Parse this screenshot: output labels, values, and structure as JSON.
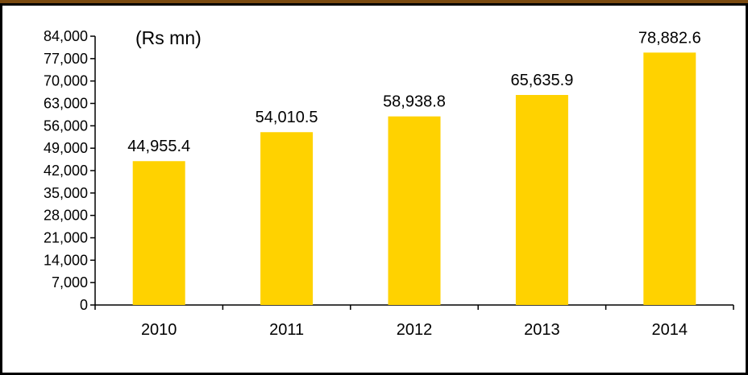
{
  "chart_data": {
    "type": "bar",
    "unit_label": "(Rs mn)",
    "categories": [
      "2010",
      "2011",
      "2012",
      "2013",
      "2014"
    ],
    "values": [
      44955.4,
      54010.5,
      58938.8,
      65635.9,
      78882.6
    ],
    "value_labels": [
      "44,955.4",
      "54,010.5",
      "58,938.8",
      "65,635.9",
      "78,882.6"
    ],
    "yticks": [
      0,
      7000,
      14000,
      21000,
      28000,
      35000,
      42000,
      49000,
      56000,
      63000,
      70000,
      77000,
      84000
    ],
    "ytick_labels": [
      "0",
      "7,000",
      "14,000",
      "21,000",
      "28,000",
      "35,000",
      "42,000",
      "49,000",
      "56,000",
      "63,000",
      "70,000",
      "77,000",
      "84,000"
    ],
    "ylim": [
      0,
      84000
    ],
    "grid": false,
    "legend": "none"
  },
  "colors": {
    "bar": "#FFD200",
    "frame_border": "#000000",
    "top_accent": "#7A4A10",
    "axis": "#000000"
  }
}
